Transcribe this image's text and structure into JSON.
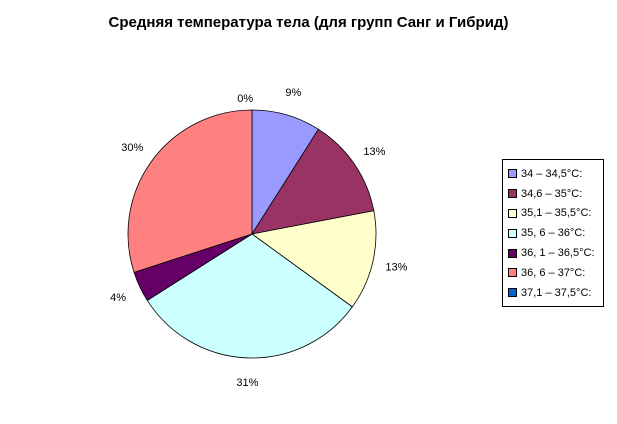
{
  "chart_data": {
    "type": "pie",
    "title": "Средняя температура тела (для групп Санг и Гибрид)",
    "slices": [
      {
        "label": "34 – 34,5°C:",
        "value": 9,
        "display": "9%",
        "color": "#9999FF"
      },
      {
        "label": "34,6 – 35°C:",
        "value": 13,
        "display": "13%",
        "color": "#993366"
      },
      {
        "label": "35,1 – 35,5°C:",
        "value": 13,
        "display": "13%",
        "color": "#FFFFCC"
      },
      {
        "label": "35, 6 – 36°C:",
        "value": 31,
        "display": "31%",
        "color": "#CCFFFF"
      },
      {
        "label": "36, 1 – 36,5°C:",
        "value": 4,
        "display": "4%",
        "color": "#660066"
      },
      {
        "label": "36, 6 – 37°C:",
        "value": 30,
        "display": "30%",
        "color": "#FF8080"
      },
      {
        "label": "37,1 – 37,5°C:",
        "value": 0,
        "display": "0%",
        "color": "#0066CC"
      }
    ],
    "legend_position": "right"
  }
}
